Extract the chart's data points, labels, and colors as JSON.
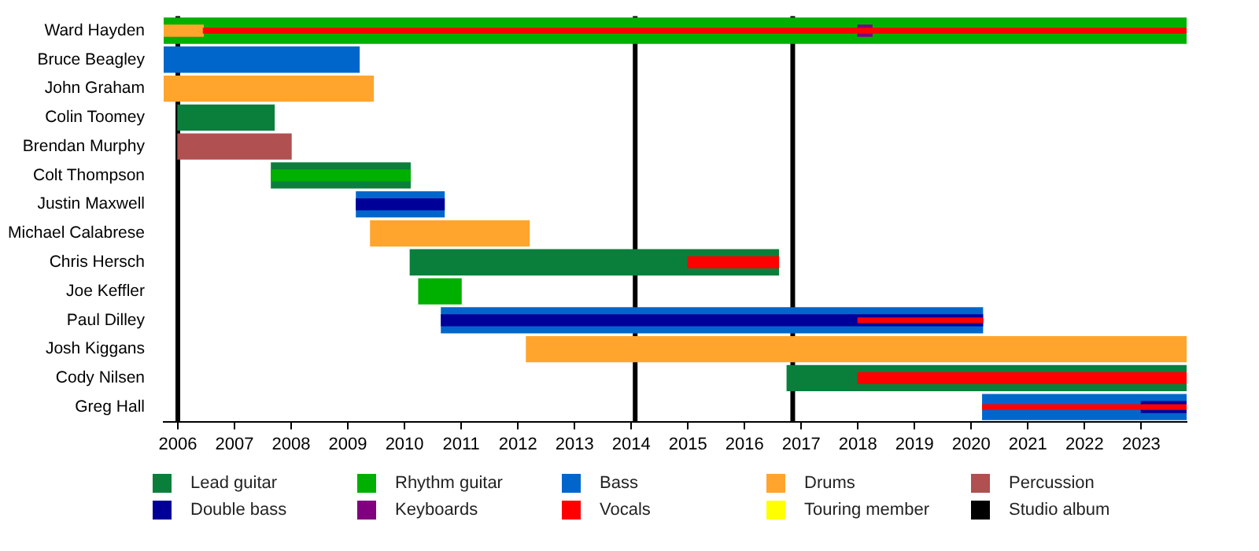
{
  "chart_data": {
    "type": "bar",
    "orientation": "horizontal",
    "legend": "bottom",
    "categories": [
      "Ward Hayden",
      "Bruce Beagley",
      "John Graham",
      "Colin Toomey",
      "Brendan Murphy",
      "Colt Thompson",
      "Justin Maxwell",
      "Michael Calabrese",
      "Chris Hersch",
      "Joe Keffler",
      "Paul Dilley",
      "Josh Kiggans",
      "Cody Nilsen",
      "Greg Hall"
    ],
    "series": [
      {
        "name": "Lead guitar",
        "color": "#0a7f3b",
        "base": [
          null,
          null,
          null,
          2006.0,
          null,
          2007.65,
          null,
          null,
          2010.1,
          null,
          null,
          null,
          2016.75,
          null
        ],
        "values": [
          null,
          null,
          null,
          1.7,
          null,
          2.45,
          null,
          null,
          6.5,
          null,
          null,
          null,
          7.05,
          null
        ]
      },
      {
        "name": "Rhythm guitar",
        "color": "#00b000",
        "base": [
          2005.75,
          null,
          null,
          null,
          null,
          2007.65,
          null,
          null,
          null,
          2010.25,
          null,
          null,
          null,
          null
        ],
        "values": [
          18.05,
          null,
          null,
          null,
          null,
          2.45,
          null,
          null,
          null,
          0.75,
          null,
          null,
          null,
          null
        ]
      },
      {
        "name": "Bass",
        "color": "#0066cc",
        "base": [
          null,
          2005.75,
          null,
          null,
          null,
          null,
          2009.15,
          null,
          null,
          null,
          2010.65,
          null,
          null,
          2020.2
        ],
        "values": [
          null,
          3.45,
          null,
          null,
          null,
          null,
          1.55,
          null,
          null,
          null,
          9.55,
          null,
          null,
          3.6
        ]
      },
      {
        "name": "Drums",
        "color": "#ffa52e",
        "base": [
          2005.75,
          null,
          2005.75,
          null,
          null,
          null,
          null,
          2009.4,
          null,
          null,
          null,
          2012.15,
          null,
          null
        ],
        "values": [
          0.7,
          null,
          3.7,
          null,
          null,
          null,
          null,
          2.8,
          null,
          null,
          null,
          11.65,
          null,
          null
        ]
      },
      {
        "name": "Percussion",
        "color": "#b05050",
        "base": [
          null,
          null,
          null,
          null,
          2006.0,
          null,
          null,
          null,
          null,
          null,
          null,
          null,
          null,
          null
        ],
        "values": [
          null,
          null,
          null,
          null,
          2.0,
          null,
          null,
          null,
          null,
          null,
          null,
          null,
          null,
          null
        ]
      },
      {
        "name": "Double bass",
        "color": "#000099",
        "base": [
          null,
          null,
          null,
          null,
          null,
          null,
          2009.15,
          null,
          null,
          null,
          2010.65,
          null,
          null,
          2023.0
        ],
        "values": [
          null,
          null,
          null,
          null,
          null,
          null,
          1.55,
          null,
          null,
          null,
          9.55,
          null,
          null,
          0.8
        ]
      },
      {
        "name": "Keyboards",
        "color": "#800080",
        "base": [
          2018.0,
          null,
          null,
          null,
          null,
          null,
          null,
          null,
          null,
          null,
          null,
          null,
          null,
          null
        ],
        "values": [
          0.25,
          null,
          null,
          null,
          null,
          null,
          null,
          null,
          null,
          null,
          null,
          null,
          null,
          null
        ]
      },
      {
        "name": "Vocals",
        "color": "#ff0000",
        "base": [
          2006.45,
          null,
          null,
          null,
          null,
          null,
          null,
          null,
          2015.0,
          null,
          2018.0,
          null,
          2018.0,
          2020.2
        ],
        "values": [
          17.35,
          null,
          null,
          null,
          null,
          null,
          null,
          null,
          1.6,
          null,
          2.2,
          null,
          5.8,
          3.6
        ]
      },
      {
        "name": "Touring member",
        "color": "#ffff00",
        "base": [
          null,
          null,
          null,
          null,
          null,
          null,
          null,
          null,
          null,
          null,
          null,
          null,
          null,
          null
        ],
        "values": [
          null,
          null,
          null,
          null,
          null,
          null,
          null,
          null,
          null,
          null,
          null,
          null,
          null,
          null
        ]
      }
    ],
    "xlim": [
      2005.75,
      2023.8
    ],
    "xticks": [
      2006,
      2007,
      2008,
      2009,
      2010,
      2011,
      2012,
      2013,
      2014,
      2015,
      2016,
      2017,
      2018,
      2019,
      2020,
      2021,
      2022,
      2023
    ],
    "ref_lines": [
      {
        "axis": "x",
        "value": 2006.0,
        "label": "Studio album",
        "color": "#000000"
      },
      {
        "axis": "x",
        "value": 2014.07,
        "color": "#000000"
      },
      {
        "axis": "x",
        "value": 2016.85,
        "color": "#000000"
      }
    ]
  }
}
